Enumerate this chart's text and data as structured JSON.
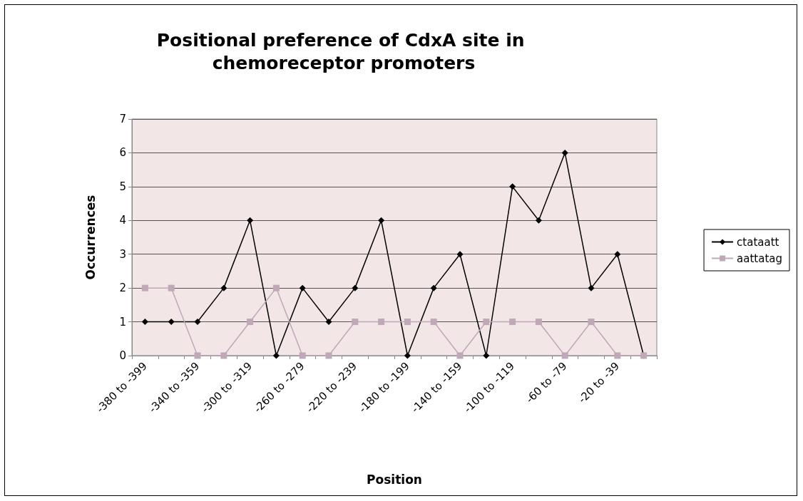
{
  "chart_data": {
    "type": "line",
    "title": "Positional preference of CdxA site in chemoreceptor promoters",
    "xlabel": "Position",
    "ylabel": "Occurrences",
    "categories": [
      "-380 to -399",
      null,
      "-340 to -359",
      null,
      "-300 to -319",
      null,
      "-260 to -279",
      null,
      "-220 to -239",
      null,
      "-180 to -199",
      null,
      "-140 to -159",
      null,
      "-100 to -119",
      null,
      "-60 to -79",
      null,
      "-20 to -39",
      null
    ],
    "series": [
      {
        "name": "ctataatt",
        "color": "#000000",
        "marker": "diamond",
        "values": [
          1,
          1,
          1,
          2,
          4,
          0,
          2,
          1,
          2,
          4,
          0,
          2,
          3,
          0,
          5,
          4,
          6,
          2,
          3,
          0
        ]
      },
      {
        "name": "aattatag",
        "color": "#c0a8b8",
        "marker": "square",
        "values": [
          2,
          2,
          0,
          0,
          1,
          2,
          0,
          0,
          1,
          1,
          1,
          1,
          0,
          1,
          1,
          1,
          0,
          1,
          0,
          0
        ]
      }
    ],
    "ylim": [
      0,
      7
    ],
    "yticks": [
      0,
      1,
      2,
      3,
      4,
      5,
      6,
      7
    ],
    "grid": "y",
    "legend": "right",
    "line_style": "solid"
  }
}
